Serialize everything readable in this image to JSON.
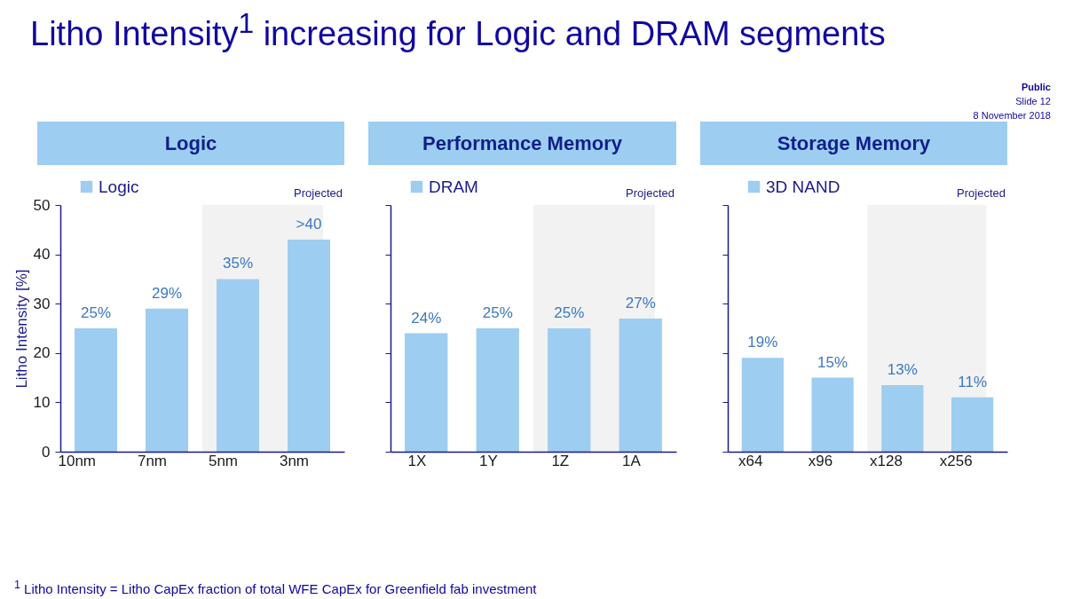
{
  "chart_data": [
    {
      "type": "bar",
      "title": "Logic",
      "ylabel": "Litho Intensity [%]",
      "categories": [
        "10nm",
        "7nm",
        "5nm",
        "3nm"
      ],
      "series": [
        {
          "name": "Logic",
          "color": "#9dcdf0",
          "values": [
            25,
            29,
            35,
            43
          ],
          "value_labels": [
            "25%",
            "29%",
            "35%",
            ">40"
          ]
        }
      ],
      "ylim": [
        0,
        50
      ],
      "yticks": [
        0,
        10,
        20,
        30,
        40,
        50
      ],
      "legend": "top left",
      "bands": [
        {
          "axis": "x",
          "from": "5nm",
          "to": "3nm",
          "label": "Projected",
          "color": "#f2f2f2"
        }
      ],
      "annotations": [
        "Litho Intensity$^{1}$ increasing for Logic and DRAM segments",
        "Public",
        "Slide 12",
        "8 November 2018",
        "$^{1}$ Litho Intensity = Litho CapEx fraction of total WFE CapEx for Greenfield fab investment"
      ]
    },
    {
      "type": "bar",
      "title": "Performance Memory",
      "categories": [
        "1X",
        "1Y",
        "1Z",
        "1A"
      ],
      "series": [
        {
          "name": "DRAM",
          "color": "#9dcdf0",
          "values": [
            24,
            25,
            25,
            27
          ],
          "value_labels": [
            "24%",
            "25%",
            "25%",
            "27%"
          ]
        }
      ],
      "ylim": [
        0,
        50
      ],
      "yticks": [
        0,
        10,
        20,
        30,
        40,
        50
      ],
      "tick_labels": "x",
      "legend": "top left",
      "bands": [
        {
          "axis": "x",
          "from": "1Z",
          "to": "1A",
          "label": "Projected",
          "color": "#f2f2f2"
        }
      ]
    },
    {
      "type": "bar",
      "title": "Storage Memory",
      "categories": [
        "x64",
        "x96",
        "x128",
        "x256"
      ],
      "series": [
        {
          "name": "3D NAND",
          "color": "#9dcdf0",
          "values": [
            19,
            15,
            13.5,
            11
          ],
          "value_labels": [
            "19%",
            "15%",
            "13%",
            "11%"
          ]
        }
      ],
      "ylim": [
        0,
        50
      ],
      "yticks": [
        0,
        10,
        20,
        30,
        40,
        50
      ],
      "tick_labels": "x",
      "legend": "top left",
      "bands": [
        {
          "axis": "x",
          "from": "x128",
          "to": "x256",
          "label": "Projected",
          "color": "#f2f2f2"
        }
      ]
    }
  ]
}
